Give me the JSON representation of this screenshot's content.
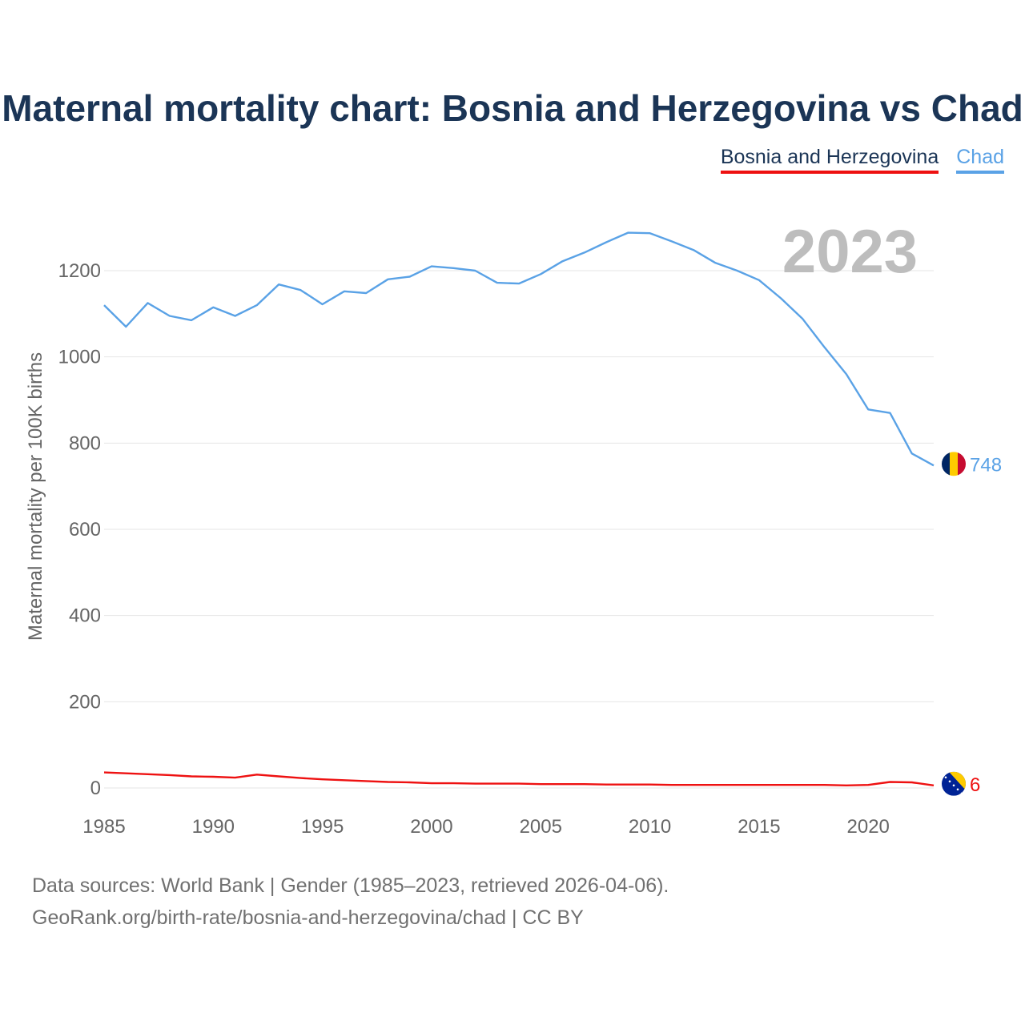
{
  "header": {
    "title": "Maternal mortality chart: Bosnia and Herzegovina vs Chad"
  },
  "legend": {
    "bih": "Bosnia and Herzegovina",
    "chad": "Chad"
  },
  "colors": {
    "bih": "#ee1111",
    "chad": "#5aa2e6",
    "grid": "#e6e6e6",
    "title": "#1b3556"
  },
  "chart_data": {
    "type": "line",
    "title": "Maternal mortality chart: Bosnia and Herzegovina vs Chad",
    "xlabel": "",
    "ylabel": "Maternal mortality per 100K births",
    "xlim": [
      1985,
      2023
    ],
    "ylim": [
      0,
      1200
    ],
    "x_ticks": [
      1985,
      1990,
      1995,
      2000,
      2005,
      2010,
      2015,
      2020
    ],
    "y_ticks": [
      0,
      200,
      400,
      600,
      800,
      1000,
      1200
    ],
    "year_label": "2023",
    "x": [
      1985,
      1986,
      1987,
      1988,
      1989,
      1990,
      1991,
      1992,
      1993,
      1994,
      1995,
      1996,
      1997,
      1998,
      1999,
      2000,
      2001,
      2002,
      2003,
      2004,
      2005,
      2006,
      2007,
      2008,
      2009,
      2010,
      2011,
      2012,
      2013,
      2014,
      2015,
      2016,
      2017,
      2018,
      2019,
      2020,
      2021,
      2022,
      2023
    ],
    "series": [
      {
        "name": "Chad",
        "color": "#5aa2e6",
        "end_label": "748",
        "values": [
          1120,
          1070,
          1125,
          1095,
          1085,
          1115,
          1095,
          1120,
          1168,
          1155,
          1122,
          1152,
          1148,
          1180,
          1186,
          1210,
          1206,
          1200,
          1172,
          1170,
          1192,
          1222,
          1242,
          1266,
          1288,
          1287,
          1268,
          1248,
          1218,
          1200,
          1178,
          1136,
          1088,
          1022,
          960,
          878,
          870,
          776,
          748
        ]
      },
      {
        "name": "Bosnia and Herzegovina",
        "color": "#ee1111",
        "end_label": "6",
        "values": [
          36,
          34,
          32,
          30,
          27,
          26,
          24,
          31,
          27,
          23,
          20,
          18,
          16,
          14,
          13,
          11,
          11,
          10,
          10,
          10,
          9,
          9,
          9,
          8,
          8,
          8,
          7,
          7,
          7,
          7,
          7,
          7,
          7,
          7,
          6,
          7,
          14,
          13,
          6
        ]
      }
    ]
  },
  "footer": {
    "line1": "Data sources: World Bank | Gender (1985–2023, retrieved 2026-04-06).",
    "line2": "GeoRank.org/birth-rate/bosnia-and-herzegovina/chad | CC BY"
  }
}
